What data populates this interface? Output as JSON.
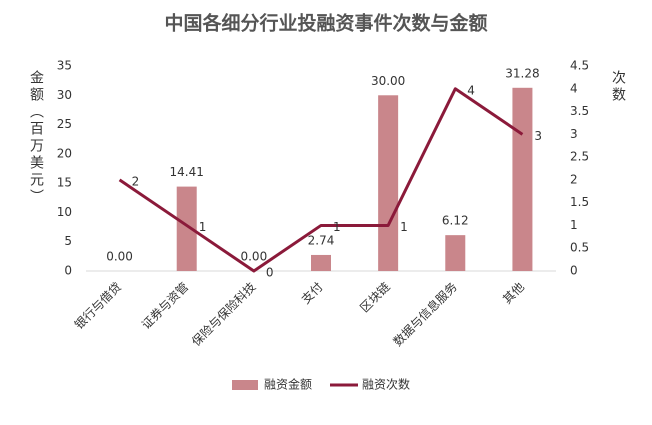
{
  "chart_data": {
    "type": "bar",
    "title": "中国各细分行业投融资事件次数与金额",
    "categories": [
      "银行与借贷",
      "证券与资管",
      "保险与保险科技",
      "支付",
      "区块链",
      "数据与信息服务",
      "其他"
    ],
    "series": [
      {
        "name": "融资金额",
        "type": "bar",
        "color": "#c9868b",
        "values": [
          0,
          14.41,
          0,
          2.74,
          30,
          6.12,
          31.28
        ],
        "value_labels": [
          "0.00",
          "14.41",
          "0.00",
          "2.74",
          "30.00",
          "6.12",
          "31.28"
        ]
      },
      {
        "name": "融资次数",
        "type": "line",
        "axis": "y2",
        "color": "#8b1a3a",
        "values": [
          2,
          1,
          0,
          1,
          1,
          4,
          3
        ]
      }
    ],
    "y_label": "金额（百万美元）",
    "y2_label": "次数",
    "ylim": [
      0,
      35
    ],
    "yticks": [
      0,
      5,
      10,
      15,
      20,
      25,
      30,
      35
    ],
    "y2lim": [
      0,
      4.5
    ],
    "y2ticks": [
      0,
      0.5,
      1,
      1.5,
      2,
      2.5,
      3,
      3.5,
      4,
      4.5
    ],
    "grid": false,
    "legend": "bottom"
  }
}
